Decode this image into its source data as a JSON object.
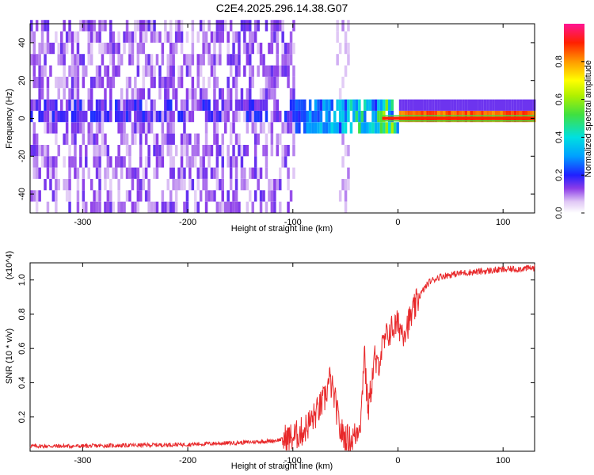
{
  "title": "C2E4.2025.296.14.38.G07",
  "chart_data": [
    {
      "type": "heatmap",
      "xlabel": "Height of straight line (km)",
      "ylabel": "Frequency (Hz)",
      "xlim": [
        -350,
        130
      ],
      "ylim": [
        -50,
        50
      ],
      "xticks": [
        -300,
        -200,
        -100,
        0,
        100
      ],
      "yticks": [
        -40,
        -20,
        0,
        20,
        40
      ],
      "colorbar": {
        "label": "Normalized spectral amplitude",
        "range": [
          0.0,
          1.0
        ],
        "ticks": [
          0.0,
          0.2,
          0.4,
          0.6,
          0.8
        ]
      },
      "features": {
        "noise_region_x": [
          -350,
          -100
        ],
        "signal_line_frequency": 0,
        "signal_onset_x": -110,
        "max_amplitude_onset_x": -15
      }
    },
    {
      "type": "line",
      "xlabel": "Height of straight line (km)",
      "ylabel": "SNR (10 * v/v)",
      "yscale_note": "(x10^4)",
      "xlim": [
        -350,
        130
      ],
      "ylim": [
        0,
        1.1
      ],
      "xticks": [
        -300,
        -200,
        -100,
        0,
        100
      ],
      "yticks": [
        0.2,
        0.4,
        0.6,
        0.8,
        1.0
      ],
      "color": "#e8282a",
      "series": [
        {
          "x": [
            -350,
            -300,
            -250,
            -200,
            -150,
            -120,
            -100,
            -90,
            -80,
            -70,
            -65,
            -60,
            -55,
            -50,
            -45,
            -40,
            -35,
            -32,
            -30,
            -28,
            -25,
            -22,
            -20,
            -15,
            -10,
            -5,
            0,
            5,
            10,
            15,
            20,
            25,
            30,
            40,
            50,
            60,
            80,
            100,
            130
          ],
          "values": [
            0.03,
            0.03,
            0.035,
            0.04,
            0.05,
            0.06,
            0.08,
            0.12,
            0.2,
            0.3,
            0.42,
            0.3,
            0.12,
            0.08,
            0.06,
            0.1,
            0.2,
            0.62,
            0.35,
            0.25,
            0.4,
            0.55,
            0.48,
            0.6,
            0.68,
            0.72,
            0.74,
            0.7,
            0.75,
            0.82,
            0.9,
            0.95,
            0.99,
            1.02,
            1.03,
            1.04,
            1.05,
            1.06,
            1.07
          ]
        }
      ]
    }
  ]
}
